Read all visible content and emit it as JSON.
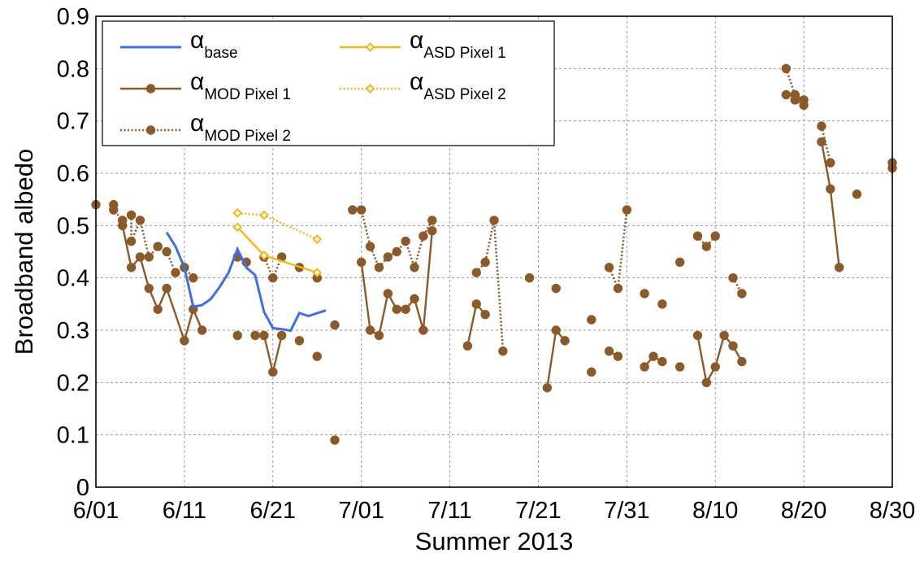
{
  "chart_data": {
    "type": "line",
    "xlabel": "Summer 2013",
    "ylabel": "Broadband albedo",
    "xlim": [
      "2013-06-01",
      "2013-08-30"
    ],
    "ylim": [
      0,
      0.9
    ],
    "x_tick_labels": [
      "6/01",
      "6/11",
      "6/21",
      "7/01",
      "7/11",
      "7/21",
      "7/31",
      "8/10",
      "8/20",
      "8/30"
    ],
    "x_tick_dates": [
      "2013-06-01",
      "2013-06-11",
      "2013-06-21",
      "2013-07-01",
      "2013-07-11",
      "2013-07-21",
      "2013-07-31",
      "2013-08-10",
      "2013-08-20",
      "2013-08-30"
    ],
    "y_ticks": [
      "0",
      "0.1",
      "0.2",
      "0.3",
      "0.4",
      "0.5",
      "0.6",
      "0.7",
      "0.8",
      "0.9"
    ],
    "grid": true,
    "legend_position": "top-left",
    "colors": {
      "base": "#3f6fe0",
      "mod": "#8b5a2b",
      "asd": "#f6b519"
    },
    "series": [
      {
        "name_symbol": "α",
        "name_sub": "base",
        "color": "#3f6fe0",
        "line": "solid",
        "marker": "none",
        "segments": [
          [
            [
              "2013-06-09",
              0.487
            ],
            [
              "2013-06-10",
              0.46
            ],
            [
              "2013-06-11",
              0.42
            ],
            [
              "2013-06-12",
              0.345
            ],
            [
              "2013-06-13",
              0.348
            ],
            [
              "2013-06-14",
              0.36
            ],
            [
              "2013-06-15",
              0.383
            ],
            [
              "2013-06-16",
              0.41
            ],
            [
              "2013-06-17",
              0.455
            ],
            [
              "2013-06-18",
              0.42
            ],
            [
              "2013-06-19",
              0.405
            ],
            [
              "2013-06-20",
              0.335
            ],
            [
              "2013-06-21",
              0.304
            ],
            [
              "2013-06-22",
              0.302
            ],
            [
              "2013-06-23",
              0.299
            ],
            [
              "2013-06-24",
              0.333
            ],
            [
              "2013-06-25",
              0.327
            ],
            [
              "2013-06-27",
              0.338
            ]
          ]
        ]
      },
      {
        "name_symbol": "α",
        "name_sub": "MOD Pixel 1",
        "color": "#8b5a2b",
        "line": "solid",
        "marker": "circle",
        "segments": [
          [
            [
              "2013-06-04",
              0.5
            ],
            [
              "2013-06-05",
              0.42
            ],
            [
              "2013-06-06",
              0.44
            ],
            [
              "2013-06-07",
              0.38
            ],
            [
              "2013-06-08",
              0.34
            ],
            [
              "2013-06-09",
              0.38
            ],
            [
              "2013-06-11",
              0.28
            ],
            [
              "2013-06-12",
              0.34
            ],
            [
              "2013-06-13",
              0.3
            ]
          ],
          [
            [
              "2013-06-17",
              0.29
            ]
          ],
          [
            [
              "2013-06-19",
              0.29
            ],
            [
              "2013-06-20",
              0.29
            ],
            [
              "2013-06-21",
              0.22
            ],
            [
              "2013-06-22",
              0.29
            ]
          ],
          [
            [
              "2013-06-24",
              0.28
            ]
          ],
          [
            [
              "2013-06-26",
              0.25
            ]
          ],
          [
            [
              "2013-06-28",
              0.09
            ]
          ],
          [
            [
              "2013-07-01",
              0.43
            ],
            [
              "2013-07-02",
              0.3
            ],
            [
              "2013-07-03",
              0.29
            ],
            [
              "2013-07-04",
              0.37
            ],
            [
              "2013-07-05",
              0.34
            ],
            [
              "2013-07-06",
              0.34
            ],
            [
              "2013-07-07",
              0.36
            ],
            [
              "2013-07-08",
              0.3
            ],
            [
              "2013-07-09",
              0.49
            ]
          ],
          [
            [
              "2013-07-13",
              0.27
            ],
            [
              "2013-07-14",
              0.35
            ],
            [
              "2013-07-15",
              0.33
            ]
          ],
          [
            [
              "2013-07-22",
              0.19
            ],
            [
              "2013-07-23",
              0.3
            ],
            [
              "2013-07-24",
              0.28
            ]
          ],
          [
            [
              "2013-07-27",
              0.22
            ]
          ],
          [
            [
              "2013-07-29",
              0.26
            ],
            [
              "2013-07-30",
              0.25
            ]
          ],
          [
            [
              "2013-08-02",
              0.23
            ],
            [
              "2013-08-03",
              0.25
            ],
            [
              "2013-08-04",
              0.24
            ]
          ],
          [
            [
              "2013-08-06",
              0.23
            ]
          ],
          [
            [
              "2013-08-08",
              0.29
            ],
            [
              "2013-08-09",
              0.2
            ],
            [
              "2013-08-10",
              0.23
            ],
            [
              "2013-08-11",
              0.29
            ],
            [
              "2013-08-12",
              0.27
            ],
            [
              "2013-08-13",
              0.24
            ]
          ],
          [
            [
              "2013-08-18",
              0.75
            ],
            [
              "2013-08-19",
              0.75
            ],
            [
              "2013-08-20",
              0.74
            ]
          ],
          [
            [
              "2013-08-22",
              0.66
            ],
            [
              "2013-08-23",
              0.57
            ],
            [
              "2013-08-24",
              0.42
            ]
          ],
          [
            [
              "2013-08-26",
              0.56
            ]
          ],
          [
            [
              "2013-08-30",
              0.61
            ]
          ]
        ]
      },
      {
        "name_symbol": "α",
        "name_sub": "MOD Pixel 2",
        "color": "#8b5a2b",
        "line": "dotted",
        "marker": "circle",
        "segments": [
          [
            [
              "2013-06-01",
              0.54
            ]
          ],
          [
            [
              "2013-06-03",
              0.54
            ],
            [
              "2013-06-03",
              0.53
            ],
            [
              "2013-06-04",
              0.51
            ],
            [
              "2013-06-05",
              0.52
            ],
            [
              "2013-06-05",
              0.47
            ],
            [
              "2013-06-06",
              0.51
            ],
            [
              "2013-06-07",
              0.44
            ],
            [
              "2013-06-08",
              0.46
            ],
            [
              "2013-06-09",
              0.45
            ],
            [
              "2013-06-10",
              0.41
            ],
            [
              "2013-06-11",
              0.42
            ],
            [
              "2013-06-12",
              0.4
            ]
          ],
          [
            [
              "2013-06-17",
              0.44
            ],
            [
              "2013-06-18",
              0.43
            ]
          ],
          [
            [
              "2013-06-20",
              0.44
            ],
            [
              "2013-06-21",
              0.4
            ],
            [
              "2013-06-22",
              0.44
            ]
          ],
          [
            [
              "2013-06-24",
              0.42
            ]
          ],
          [
            [
              "2013-06-26",
              0.4
            ]
          ],
          [
            [
              "2013-06-28",
              0.31
            ]
          ],
          [
            [
              "2013-06-30",
              0.53
            ],
            [
              "2013-07-01",
              0.53
            ],
            [
              "2013-07-02",
              0.46
            ],
            [
              "2013-07-03",
              0.42
            ],
            [
              "2013-07-04",
              0.44
            ],
            [
              "2013-07-05",
              0.45
            ],
            [
              "2013-07-06",
              0.47
            ],
            [
              "2013-07-07",
              0.42
            ],
            [
              "2013-07-08",
              0.48
            ],
            [
              "2013-07-09",
              0.51
            ]
          ],
          [
            [
              "2013-07-14",
              0.41
            ],
            [
              "2013-07-15",
              0.43
            ],
            [
              "2013-07-16",
              0.51
            ],
            [
              "2013-07-17",
              0.26
            ]
          ],
          [
            [
              "2013-07-20",
              0.4
            ]
          ],
          [
            [
              "2013-07-23",
              0.38
            ]
          ],
          [
            [
              "2013-07-27",
              0.32
            ]
          ],
          [
            [
              "2013-07-29",
              0.42
            ],
            [
              "2013-07-30",
              0.38
            ],
            [
              "2013-07-31",
              0.53
            ]
          ],
          [
            [
              "2013-08-02",
              0.37
            ]
          ],
          [
            [
              "2013-08-04",
              0.35
            ]
          ],
          [
            [
              "2013-08-06",
              0.43
            ]
          ],
          [
            [
              "2013-08-08",
              0.48
            ],
            [
              "2013-08-09",
              0.46
            ],
            [
              "2013-08-10",
              0.48
            ]
          ],
          [
            [
              "2013-08-12",
              0.4
            ],
            [
              "2013-08-13",
              0.37
            ]
          ],
          [
            [
              "2013-08-18",
              0.8
            ],
            [
              "2013-08-19",
              0.75
            ],
            [
              "2013-08-19",
              0.74
            ],
            [
              "2013-08-20",
              0.73
            ]
          ],
          [
            [
              "2013-08-22",
              0.69
            ],
            [
              "2013-08-23",
              0.62
            ]
          ],
          [
            [
              "2013-08-30",
              0.62
            ]
          ]
        ]
      },
      {
        "name_symbol": "α",
        "name_sub": "ASD Pixel 1",
        "color": "#f6b519",
        "line": "solid",
        "marker": "diamond",
        "segments": [
          [
            [
              "2013-06-17",
              0.497
            ],
            [
              "2013-06-20",
              0.443
            ],
            [
              "2013-06-26",
              0.41
            ]
          ]
        ]
      },
      {
        "name_symbol": "α",
        "name_sub": "ASD Pixel 2",
        "color": "#f6b519",
        "line": "dotted",
        "marker": "diamond",
        "segments": [
          [
            [
              "2013-06-17",
              0.524
            ],
            [
              "2013-06-20",
              0.52
            ],
            [
              "2013-06-26",
              0.474
            ]
          ]
        ]
      }
    ]
  }
}
